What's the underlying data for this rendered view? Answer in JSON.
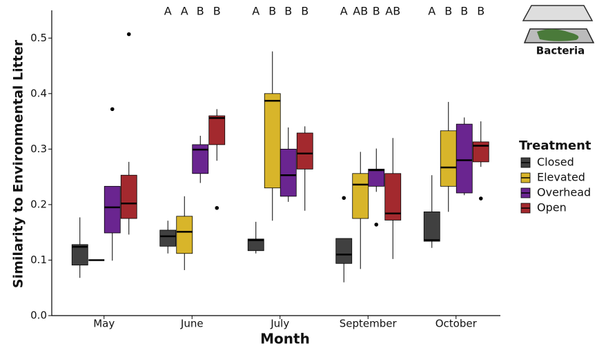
{
  "chart_data": {
    "type": "box",
    "x_label": "Month",
    "y_label": "Similarity to Environmental Litter",
    "categories": [
      "May",
      "June",
      "July",
      "September",
      "October"
    ],
    "ylim": [
      0,
      0.55
    ],
    "yticks": [
      {
        "value": 0,
        "label": "0.0"
      },
      0.1,
      0.2,
      0.3,
      0.4,
      0.5
    ],
    "legend_title": "Treatment",
    "legend": "right",
    "icon_label": "Bacteria",
    "letters": [
      null,
      [
        "A",
        "A",
        "B",
        "B"
      ],
      [
        "A",
        "B",
        "B",
        "B"
      ],
      [
        "A",
        "AB",
        "B",
        "AB"
      ],
      [
        "A",
        "B",
        "B",
        "B"
      ]
    ],
    "series": [
      {
        "name": "Closed",
        "color": "#404040",
        "values": [
          {
            "low": 0.068,
            "q1": 0.091,
            "median": 0.124,
            "q3": 0.128,
            "high": 0.177,
            "outliers": []
          },
          {
            "low": 0.112,
            "q1": 0.125,
            "median": 0.143,
            "q3": 0.154,
            "high": 0.171,
            "outliers": []
          },
          {
            "low": 0.112,
            "q1": 0.117,
            "median": 0.136,
            "q3": 0.138,
            "high": 0.169,
            "outliers": []
          },
          {
            "low": 0.06,
            "q1": 0.094,
            "median": 0.11,
            "q3": 0.139,
            "high": 0.139,
            "outliers": [
              0.212
            ]
          },
          {
            "low": 0.122,
            "q1": 0.134,
            "median": 0.136,
            "q3": 0.187,
            "high": 0.253,
            "outliers": []
          }
        ]
      },
      {
        "name": "Elevated",
        "color": "#d8b52a",
        "values": [
          {
            "low": 0.1,
            "q1": 0.1,
            "median": 0.1,
            "q3": 0.1,
            "high": 0.1,
            "outliers": []
          },
          {
            "low": 0.082,
            "q1": 0.112,
            "median": 0.151,
            "q3": 0.179,
            "high": 0.215,
            "outliers": []
          },
          {
            "low": 0.171,
            "q1": 0.23,
            "median": 0.387,
            "q3": 0.4,
            "high": 0.476,
            "outliers": []
          },
          {
            "low": 0.084,
            "q1": 0.175,
            "median": 0.236,
            "q3": 0.256,
            "high": 0.295,
            "outliers": []
          },
          {
            "low": 0.187,
            "q1": 0.233,
            "median": 0.267,
            "q3": 0.333,
            "high": 0.385,
            "outliers": []
          }
        ]
      },
      {
        "name": "Overhead",
        "color": "#6a2590",
        "values": [
          {
            "low": 0.099,
            "q1": 0.149,
            "median": 0.195,
            "q3": 0.233,
            "high": 0.233,
            "outliers": [
              0.372
            ]
          },
          {
            "low": 0.239,
            "q1": 0.256,
            "median": 0.299,
            "q3": 0.308,
            "high": 0.324,
            "outliers": []
          },
          {
            "low": 0.205,
            "q1": 0.215,
            "median": 0.253,
            "q3": 0.3,
            "high": 0.339,
            "outliers": []
          },
          {
            "low": 0.223,
            "q1": 0.233,
            "median": 0.262,
            "q3": 0.264,
            "high": 0.301,
            "outliers": [
              0.164
            ]
          },
          {
            "low": 0.217,
            "q1": 0.221,
            "median": 0.28,
            "q3": 0.345,
            "high": 0.357,
            "outliers": []
          }
        ]
      },
      {
        "name": "Open",
        "color": "#a3292e",
        "values": [
          {
            "low": 0.146,
            "q1": 0.175,
            "median": 0.202,
            "q3": 0.253,
            "high": 0.277,
            "outliers": [
              0.507
            ]
          },
          {
            "low": 0.279,
            "q1": 0.308,
            "median": 0.356,
            "q3": 0.36,
            "high": 0.372,
            "outliers": [
              0.194
            ]
          },
          {
            "low": 0.189,
            "q1": 0.264,
            "median": 0.292,
            "q3": 0.329,
            "high": 0.341,
            "outliers": []
          },
          {
            "low": 0.102,
            "q1": 0.172,
            "median": 0.184,
            "q3": 0.256,
            "high": 0.32,
            "outliers": []
          },
          {
            "low": 0.268,
            "q1": 0.277,
            "median": 0.306,
            "q3": 0.313,
            "high": 0.35,
            "outliers": [
              0.211
            ]
          }
        ]
      }
    ]
  }
}
